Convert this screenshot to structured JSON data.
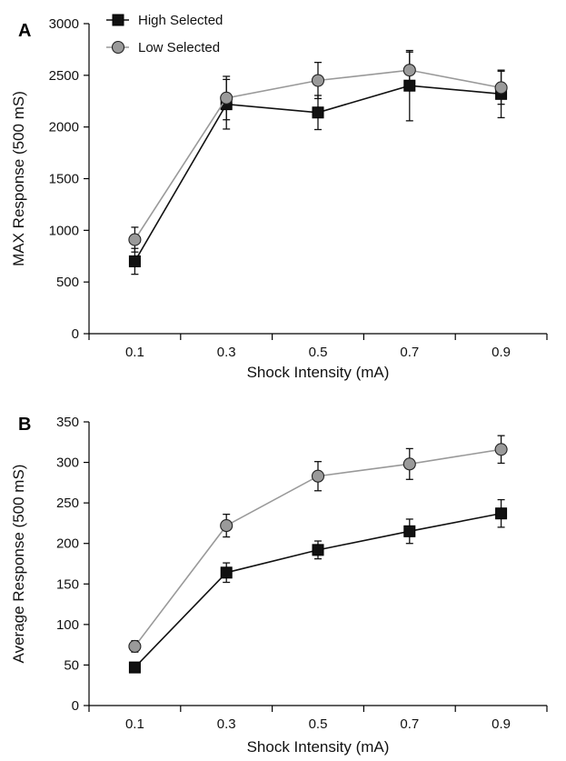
{
  "chart_data": [
    {
      "panel": "A",
      "type": "line",
      "xlabel": "Shock Intensity (mA)",
      "ylabel": "MAX Response (500 mS)",
      "categories": [
        "0.1",
        "0.3",
        "0.5",
        "0.7",
        "0.9"
      ],
      "ylim": [
        0,
        3000
      ],
      "yticks": [
        "0",
        "500",
        "1000",
        "1500",
        "2000",
        "2500",
        "3000"
      ],
      "legend": "top-left",
      "series": [
        {
          "name": "High Selected",
          "marker": "square",
          "color": "#111111",
          "values": [
            700,
            2220,
            2140,
            2400,
            2320
          ],
          "errors": [
            125,
            240,
            165,
            340,
            230
          ]
        },
        {
          "name": "Low Selected",
          "marker": "circle",
          "color": "#999999",
          "values": [
            910,
            2280,
            2450,
            2550,
            2380
          ],
          "errors": [
            120,
            210,
            175,
            175,
            160
          ]
        }
      ]
    },
    {
      "panel": "B",
      "type": "line",
      "xlabel": "Shock Intensity (mA)",
      "ylabel": "Average Response (500 mS)",
      "categories": [
        "0.1",
        "0.3",
        "0.5",
        "0.7",
        "0.9"
      ],
      "ylim": [
        0,
        350
      ],
      "yticks": [
        "0",
        "50",
        "100",
        "150",
        "200",
        "250",
        "300",
        "350"
      ],
      "series": [
        {
          "name": "High Selected",
          "marker": "square",
          "color": "#111111",
          "values": [
            47,
            164,
            192,
            215,
            237
          ],
          "errors": [
            3,
            12,
            11,
            15,
            17
          ]
        },
        {
          "name": "Low Selected",
          "marker": "circle",
          "color": "#999999",
          "values": [
            73,
            222,
            283,
            298,
            316
          ],
          "errors": [
            7,
            14,
            18,
            19,
            17
          ]
        }
      ]
    }
  ]
}
